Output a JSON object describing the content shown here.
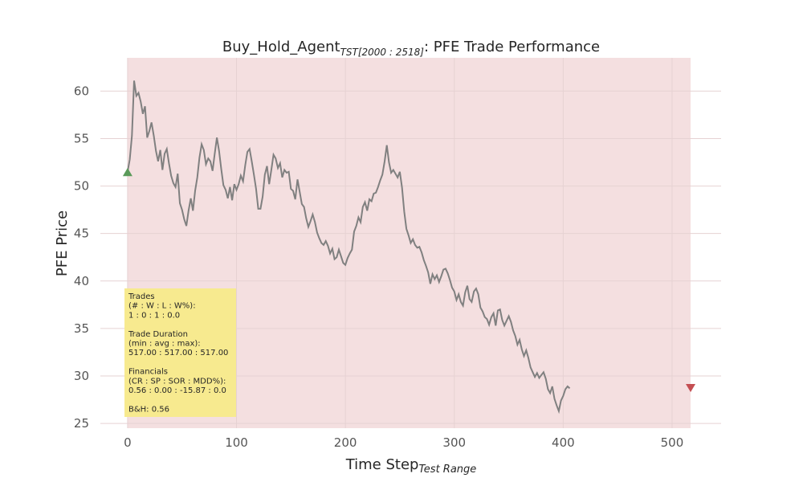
{
  "chart_data": {
    "type": "line",
    "title": {
      "main": "Buy_Hold_Agent",
      "sub": "TST[2000 : 2518]",
      "rest": ": PFE Trade Performance"
    },
    "xlabel": {
      "main": "Time Step",
      "sub": "Test Range"
    },
    "ylabel": "PFE Price",
    "xlim": [
      -25,
      545
    ],
    "ylim": [
      24.5,
      63.5
    ],
    "x_ticks": [
      0,
      100,
      200,
      300,
      400,
      500
    ],
    "y_ticks": [
      25,
      30,
      35,
      40,
      45,
      50,
      55,
      60
    ],
    "grid": true,
    "shaded_range": [
      0,
      517
    ],
    "series": [
      {
        "color": "#808080",
        "points": [
          [
            0,
            51.5
          ],
          [
            2,
            52.8
          ],
          [
            4,
            55.3
          ],
          [
            6,
            61.1
          ],
          [
            8,
            59.5
          ],
          [
            10,
            59.8
          ],
          [
            12,
            58.9
          ],
          [
            14,
            57.6
          ],
          [
            16,
            58.4
          ],
          [
            18,
            55.1
          ],
          [
            20,
            55.8
          ],
          [
            22,
            56.7
          ],
          [
            24,
            55.3
          ],
          [
            26,
            53.7
          ],
          [
            28,
            52.6
          ],
          [
            30,
            53.8
          ],
          [
            32,
            51.7
          ],
          [
            34,
            53.4
          ],
          [
            36,
            53.9
          ],
          [
            38,
            52.4
          ],
          [
            40,
            51.1
          ],
          [
            42,
            50.3
          ],
          [
            44,
            49.9
          ],
          [
            46,
            51.3
          ],
          [
            48,
            48.2
          ],
          [
            50,
            47.5
          ],
          [
            52,
            46.5
          ],
          [
            54,
            45.8
          ],
          [
            56,
            47.4
          ],
          [
            58,
            48.7
          ],
          [
            60,
            47.4
          ],
          [
            62,
            49.5
          ],
          [
            64,
            50.9
          ],
          [
            66,
            53.0
          ],
          [
            68,
            54.4
          ],
          [
            70,
            53.8
          ],
          [
            72,
            52.3
          ],
          [
            74,
            52.9
          ],
          [
            76,
            52.6
          ],
          [
            78,
            51.6
          ],
          [
            80,
            53.4
          ],
          [
            82,
            55.1
          ],
          [
            84,
            53.7
          ],
          [
            86,
            51.8
          ],
          [
            88,
            50.1
          ],
          [
            90,
            49.6
          ],
          [
            92,
            48.7
          ],
          [
            94,
            49.9
          ],
          [
            96,
            48.5
          ],
          [
            98,
            50.2
          ],
          [
            100,
            49.6
          ],
          [
            102,
            50.2
          ],
          [
            104,
            51.1
          ],
          [
            106,
            50.5
          ],
          [
            108,
            52.2
          ],
          [
            110,
            53.6
          ],
          [
            112,
            53.9
          ],
          [
            114,
            52.6
          ],
          [
            116,
            51.2
          ],
          [
            118,
            49.7
          ],
          [
            120,
            47.6
          ],
          [
            122,
            47.6
          ],
          [
            124,
            48.9
          ],
          [
            126,
            51.2
          ],
          [
            128,
            52.1
          ],
          [
            130,
            50.2
          ],
          [
            132,
            51.7
          ],
          [
            134,
            53.3
          ],
          [
            136,
            52.9
          ],
          [
            138,
            51.9
          ],
          [
            140,
            52.4
          ],
          [
            142,
            50.9
          ],
          [
            144,
            51.7
          ],
          [
            146,
            51.4
          ],
          [
            148,
            51.5
          ],
          [
            150,
            49.7
          ],
          [
            152,
            49.5
          ],
          [
            154,
            48.6
          ],
          [
            156,
            50.7
          ],
          [
            158,
            49.4
          ],
          [
            160,
            48.1
          ],
          [
            162,
            47.8
          ],
          [
            164,
            46.6
          ],
          [
            166,
            45.7
          ],
          [
            168,
            46.3
          ],
          [
            170,
            47.0
          ],
          [
            172,
            46.2
          ],
          [
            174,
            45.1
          ],
          [
            176,
            44.5
          ],
          [
            178,
            44.0
          ],
          [
            180,
            43.8
          ],
          [
            182,
            44.2
          ],
          [
            184,
            43.7
          ],
          [
            186,
            42.9
          ],
          [
            188,
            43.4
          ],
          [
            190,
            42.3
          ],
          [
            192,
            42.5
          ],
          [
            194,
            43.3
          ],
          [
            196,
            42.6
          ],
          [
            198,
            41.9
          ],
          [
            200,
            41.7
          ],
          [
            202,
            42.4
          ],
          [
            204,
            42.9
          ],
          [
            206,
            43.3
          ],
          [
            208,
            45.2
          ],
          [
            210,
            45.8
          ],
          [
            212,
            46.7
          ],
          [
            214,
            46.2
          ],
          [
            216,
            47.8
          ],
          [
            218,
            48.3
          ],
          [
            220,
            47.4
          ],
          [
            222,
            48.6
          ],
          [
            224,
            48.4
          ],
          [
            226,
            49.2
          ],
          [
            228,
            49.3
          ],
          [
            230,
            49.9
          ],
          [
            232,
            50.6
          ],
          [
            234,
            51.2
          ],
          [
            236,
            52.6
          ],
          [
            238,
            54.3
          ],
          [
            240,
            52.5
          ],
          [
            242,
            51.4
          ],
          [
            244,
            51.7
          ],
          [
            246,
            51.3
          ],
          [
            248,
            50.9
          ],
          [
            250,
            51.5
          ],
          [
            252,
            49.8
          ],
          [
            254,
            47.3
          ],
          [
            256,
            45.5
          ],
          [
            258,
            44.8
          ],
          [
            260,
            44.0
          ],
          [
            262,
            44.4
          ],
          [
            264,
            43.8
          ],
          [
            266,
            43.5
          ],
          [
            268,
            43.6
          ],
          [
            270,
            43.0
          ],
          [
            272,
            42.2
          ],
          [
            274,
            41.6
          ],
          [
            276,
            40.9
          ],
          [
            278,
            39.7
          ],
          [
            280,
            40.7
          ],
          [
            282,
            40.2
          ],
          [
            284,
            40.6
          ],
          [
            286,
            39.9
          ],
          [
            288,
            40.5
          ],
          [
            290,
            41.2
          ],
          [
            292,
            41.3
          ],
          [
            294,
            40.8
          ],
          [
            296,
            40.1
          ],
          [
            298,
            39.3
          ],
          [
            300,
            38.9
          ],
          [
            302,
            38.0
          ],
          [
            304,
            38.6
          ],
          [
            306,
            37.8
          ],
          [
            308,
            37.4
          ],
          [
            310,
            38.8
          ],
          [
            312,
            39.5
          ],
          [
            314,
            38.1
          ],
          [
            316,
            37.8
          ],
          [
            318,
            38.9
          ],
          [
            320,
            39.2
          ],
          [
            322,
            38.6
          ],
          [
            324,
            37.2
          ],
          [
            326,
            36.8
          ],
          [
            328,
            36.2
          ],
          [
            330,
            36.0
          ],
          [
            332,
            35.4
          ],
          [
            334,
            36.2
          ],
          [
            336,
            36.6
          ],
          [
            338,
            35.3
          ],
          [
            340,
            36.9
          ],
          [
            342,
            37.0
          ],
          [
            344,
            35.9
          ],
          [
            346,
            35.3
          ],
          [
            348,
            35.8
          ],
          [
            350,
            36.3
          ],
          [
            352,
            35.7
          ],
          [
            354,
            34.8
          ],
          [
            356,
            34.2
          ],
          [
            358,
            33.3
          ],
          [
            360,
            33.8
          ],
          [
            362,
            32.8
          ],
          [
            364,
            32.1
          ],
          [
            366,
            32.7
          ],
          [
            368,
            31.9
          ],
          [
            370,
            30.9
          ],
          [
            372,
            30.4
          ],
          [
            374,
            29.9
          ],
          [
            376,
            30.3
          ],
          [
            378,
            29.8
          ],
          [
            380,
            30.1
          ],
          [
            382,
            30.4
          ],
          [
            384,
            29.7
          ],
          [
            386,
            28.6
          ],
          [
            388,
            28.2
          ],
          [
            390,
            28.9
          ],
          [
            392,
            27.6
          ],
          [
            394,
            26.9
          ],
          [
            396,
            26.3
          ],
          [
            398,
            27.4
          ],
          [
            400,
            27.9
          ],
          [
            402,
            28.6
          ],
          [
            404,
            28.9
          ],
          [
            406,
            28.7
          ]
        ]
      }
    ],
    "markers": [
      {
        "type": "buy",
        "symbol": "up-triangle",
        "x": 0,
        "y": 51.4,
        "color": "#5a9a5a"
      },
      {
        "type": "sell",
        "symbol": "down-triangle",
        "x": 517,
        "y": 28.8,
        "color": "#c44e52"
      }
    ],
    "colors": {
      "shade": "#f4dfe0",
      "stats_box": "#f7ea8f",
      "grid": "#e6d2d3"
    },
    "stats_box": {
      "lines": [
        "Trades",
        "(# : W : L : W%):",
        "1 : 0 : 1 : 0.0",
        "",
        "Trade Duration",
        "(min : avg : max):",
        "517.00 : 517.00 : 517.00",
        "",
        "Financials",
        "(CR : SP : SOR : MDD%):",
        "0.56 : 0.00 : -15.87 : 0.0",
        "",
        "B&H: 0.56"
      ]
    }
  }
}
